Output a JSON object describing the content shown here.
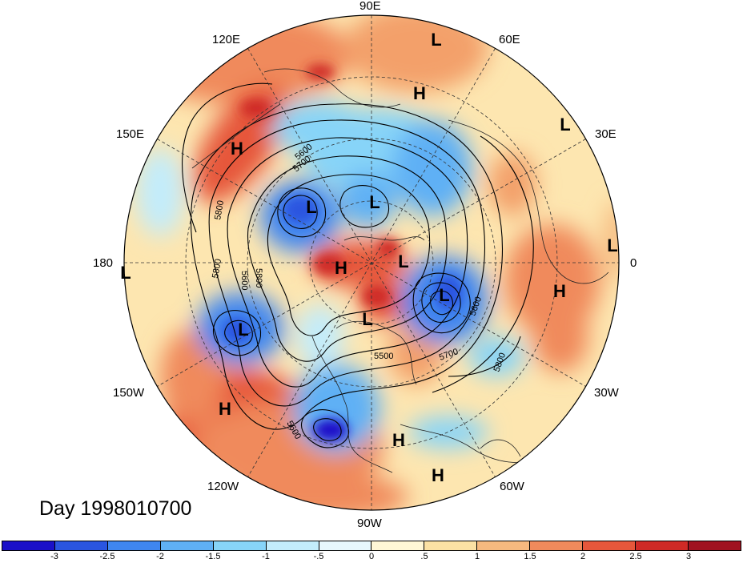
{
  "title": "Day 1998010700",
  "longitude_labels": [
    "90E",
    "60E",
    "30E",
    "0",
    "30W",
    "60W",
    "90W",
    "120W",
    "150W",
    "180",
    "150E",
    "120E"
  ],
  "colorbar": {
    "colors": [
      "#1a10c8",
      "#2a55e0",
      "#3f86f0",
      "#5fb0f5",
      "#87d4f8",
      "#c3ecfb",
      "#e7f7fd",
      "#fff7d6",
      "#fbe1a4",
      "#f6b97f",
      "#f08a5c",
      "#e6573b",
      "#cf2a26",
      "#a01220"
    ],
    "tick_labels": [
      "-3",
      "-2.5",
      "-2",
      "-1.5",
      "-1",
      "-.5",
      "0",
      ".5",
      "1",
      "1.5",
      "2",
      "2.5",
      "3"
    ]
  },
  "contour_labels": [
    "5600",
    "5700",
    "5800",
    "5800",
    "5600",
    "5600",
    "5500",
    "5700",
    "5800",
    "5600",
    "5800"
  ],
  "pressure_centers": [
    {
      "label": "L"
    },
    {
      "label": "H"
    },
    {
      "label": "L"
    },
    {
      "label": "H"
    },
    {
      "label": "L"
    },
    {
      "label": "L"
    },
    {
      "label": "L"
    },
    {
      "label": "H"
    },
    {
      "label": "L"
    },
    {
      "label": "L"
    },
    {
      "label": "H"
    },
    {
      "label": "L"
    },
    {
      "label": "L"
    },
    {
      "label": "H"
    },
    {
      "label": "H"
    },
    {
      "label": "H"
    },
    {
      "label": "L"
    }
  ]
}
